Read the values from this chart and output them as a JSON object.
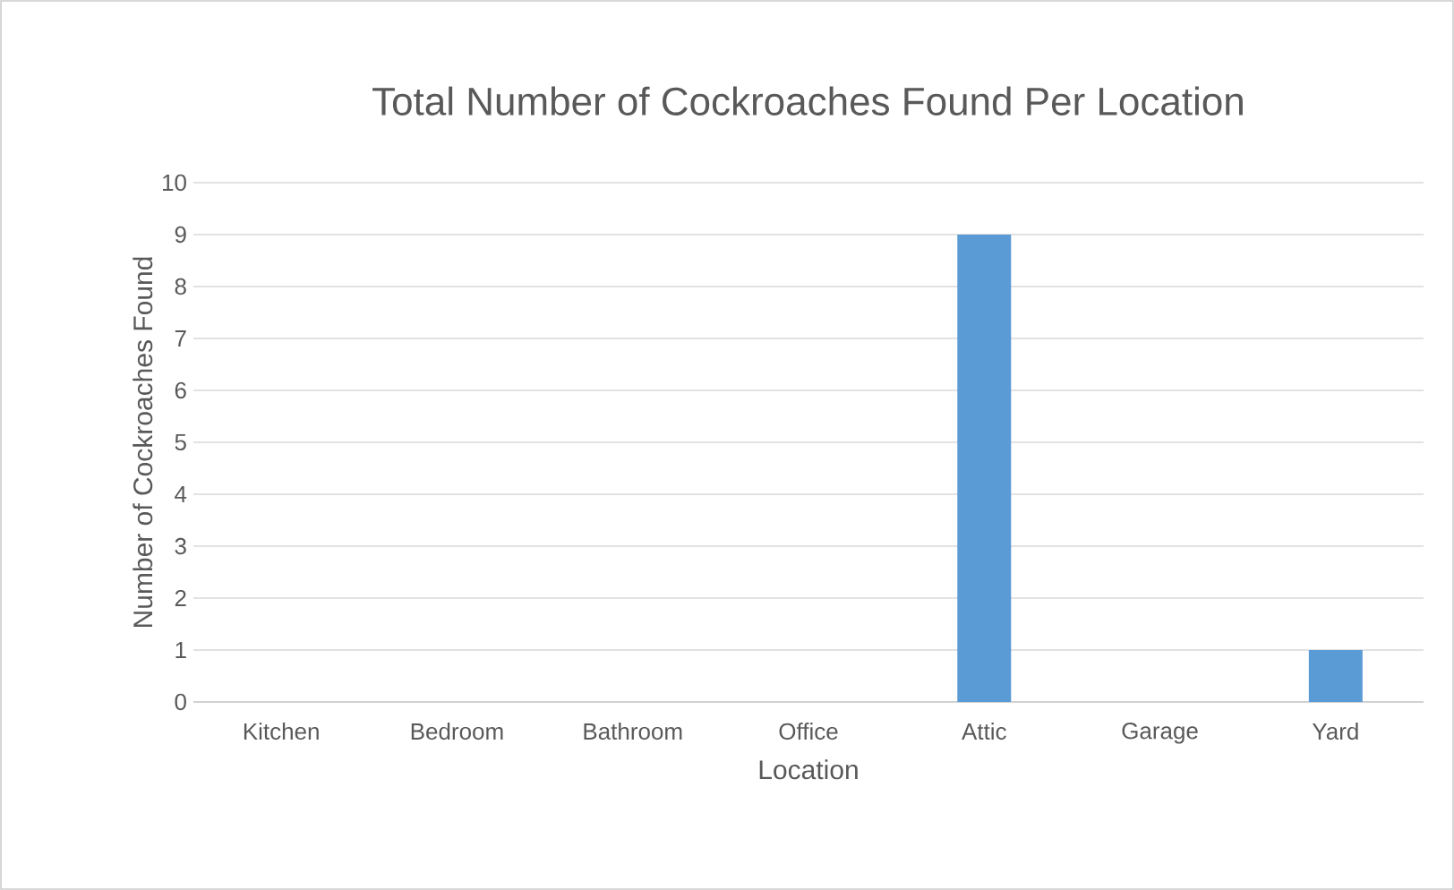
{
  "chart_data": {
    "type": "bar",
    "title": "Total Number of Cockroaches Found Per Location",
    "xlabel": "Location",
    "ylabel": "Number of Cockroaches Found",
    "categories": [
      "Kitchen",
      "Bedroom",
      "Bathroom",
      "Office",
      "Attic",
      "Garage",
      "Yard"
    ],
    "values": [
      0,
      0,
      0,
      0,
      9,
      0,
      1
    ],
    "color": "#5b9bd5",
    "ylim": [
      0,
      10
    ],
    "yticks": [
      0,
      1,
      2,
      3,
      4,
      5,
      6,
      7,
      8,
      9,
      10
    ],
    "grid": "y"
  }
}
